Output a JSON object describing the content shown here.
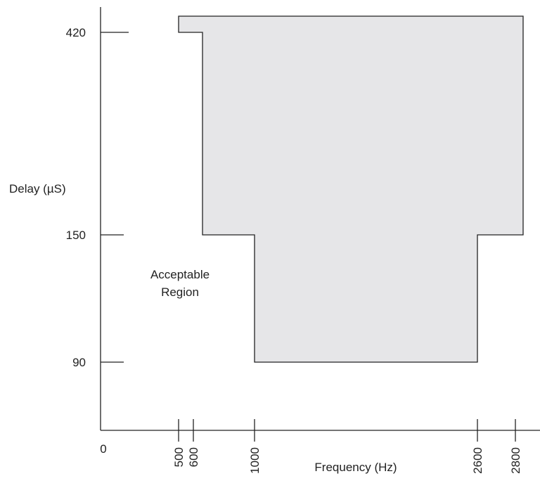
{
  "chart_data": {
    "type": "area",
    "title": "",
    "xlabel": "Frequency (Hz)",
    "ylabel": "Delay (µS)",
    "origin_label": "0",
    "x_ticks": [
      {
        "value": 500,
        "label": "500"
      },
      {
        "value": 600,
        "label": "600"
      },
      {
        "value": 1000,
        "label": "1000"
      },
      {
        "value": 2600,
        "label": "2600"
      },
      {
        "value": 2800,
        "label": "2800"
      }
    ],
    "y_ticks": [
      {
        "value": 420,
        "label": "420"
      },
      {
        "value": 150,
        "label": "150"
      },
      {
        "value": 90,
        "label": "90"
      }
    ],
    "region_annotation": [
      "Acceptable",
      "Region"
    ],
    "region_outline": [
      [
        500,
        430
      ],
      [
        2850,
        430
      ],
      [
        2850,
        150
      ],
      [
        2600,
        150
      ],
      [
        2600,
        90
      ],
      [
        1000,
        90
      ],
      [
        1000,
        150
      ],
      [
        650,
        150
      ],
      [
        650,
        420
      ],
      [
        500,
        420
      ]
    ],
    "colors": {
      "fill": "#e6e6e8",
      "stroke": "#222222"
    },
    "grid": false
  }
}
